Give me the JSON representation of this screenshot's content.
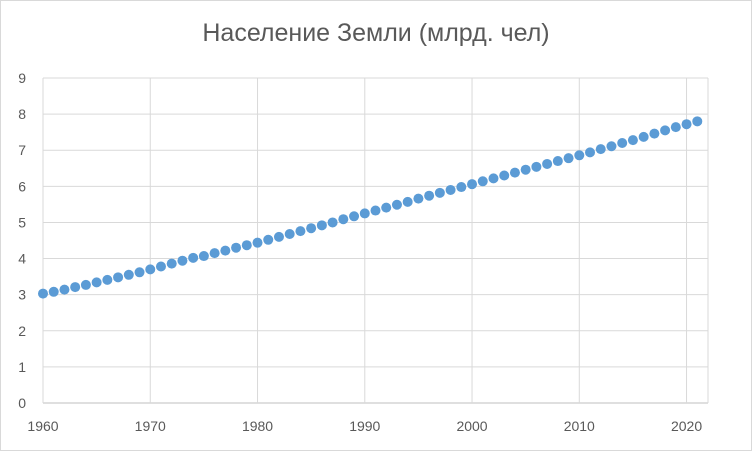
{
  "chart_data": {
    "type": "scatter",
    "title": "Население Земли (млрд. чел)",
    "xlabel": "",
    "ylabel": "",
    "xlim": [
      1960,
      2022
    ],
    "ylim": [
      0,
      9
    ],
    "xticks": [
      1960,
      1970,
      1980,
      1990,
      2000,
      2010,
      2020
    ],
    "yticks": [
      0,
      1,
      2,
      3,
      4,
      5,
      6,
      7,
      8,
      9
    ],
    "grid": true,
    "legend": "none",
    "marker_color": "#5b9bd5",
    "series": [
      {
        "x": [
          1960,
          1961,
          1962,
          1963,
          1964,
          1965,
          1966,
          1967,
          1968,
          1969,
          1970,
          1971,
          1972,
          1973,
          1974,
          1975,
          1976,
          1977,
          1978,
          1979,
          1980,
          1981,
          1982,
          1983,
          1984,
          1985,
          1986,
          1987,
          1988,
          1989,
          1990,
          1991,
          1992,
          1993,
          1994,
          1995,
          1996,
          1997,
          1998,
          1999,
          2000,
          2001,
          2002,
          2003,
          2004,
          2005,
          2006,
          2007,
          2008,
          2009,
          2010,
          2011,
          2012,
          2013,
          2014,
          2015,
          2016,
          2017,
          2018,
          2019,
          2020,
          2021
        ],
        "y": [
          3.03,
          3.08,
          3.14,
          3.21,
          3.27,
          3.34,
          3.41,
          3.48,
          3.55,
          3.62,
          3.7,
          3.78,
          3.86,
          3.94,
          4.02,
          4.07,
          4.15,
          4.22,
          4.3,
          4.37,
          4.44,
          4.52,
          4.6,
          4.68,
          4.76,
          4.84,
          4.92,
          5.0,
          5.09,
          5.17,
          5.25,
          5.33,
          5.41,
          5.49,
          5.57,
          5.66,
          5.74,
          5.82,
          5.9,
          5.98,
          6.06,
          6.14,
          6.22,
          6.3,
          6.38,
          6.46,
          6.54,
          6.62,
          6.7,
          6.78,
          6.86,
          6.94,
          7.03,
          7.11,
          7.2,
          7.28,
          7.37,
          7.46,
          7.55,
          7.64,
          7.72,
          7.8
        ]
      }
    ]
  }
}
